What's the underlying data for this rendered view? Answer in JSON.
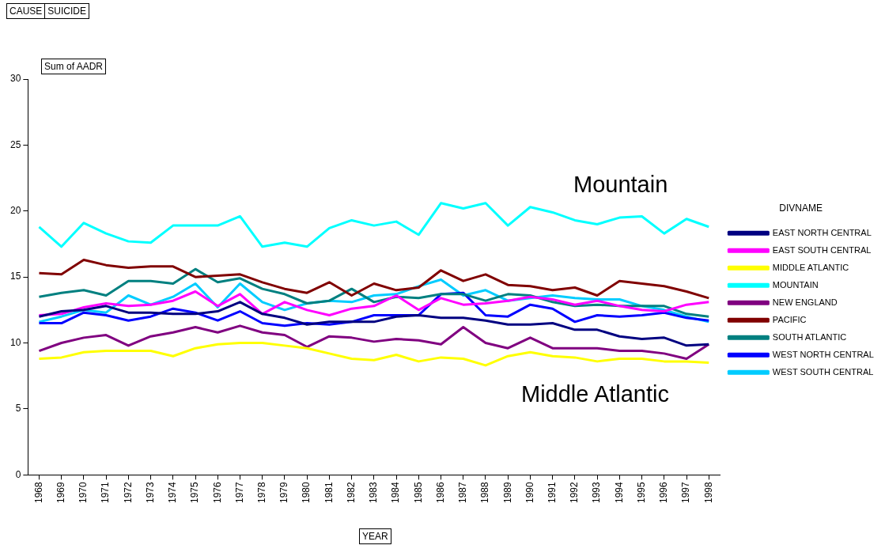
{
  "chart_data": {
    "type": "line",
    "xlabel": "YEAR",
    "ylabel": "Sum of AADR",
    "legend_title": "DIVNAME",
    "legend": "right",
    "grid": false,
    "marker": "none",
    "line_style": "solid",
    "annotations": [
      "CAUSE",
      "SUICIDE",
      "Mountain",
      "Middle Atlantic"
    ],
    "ylim": [
      0,
      30
    ],
    "yticks": [
      0,
      5,
      10,
      15,
      20,
      25,
      30
    ],
    "categories": [
      "1968",
      "1969",
      "1970",
      "1971",
      "1972",
      "1973",
      "1974",
      "1975",
      "1976",
      "1977",
      "1978",
      "1979",
      "1980",
      "1981",
      "1982",
      "1983",
      "1984",
      "1985",
      "1986",
      "1987",
      "1988",
      "1989",
      "1990",
      "1991",
      "1992",
      "1993",
      "1994",
      "1995",
      "1996",
      "1997",
      "1998"
    ],
    "series": [
      {
        "name": "EAST NORTH CENTRAL",
        "color": "#000080",
        "values": [
          12.0,
          12.4,
          12.5,
          12.8,
          12.3,
          12.3,
          12.2,
          12.2,
          12.4,
          13.1,
          12.2,
          11.9,
          11.4,
          11.6,
          11.6,
          11.6,
          12.0,
          12.1,
          11.9,
          11.9,
          11.7,
          11.4,
          11.4,
          11.5,
          11.0,
          11.0,
          10.5,
          10.3,
          10.4,
          9.8,
          9.9
        ]
      },
      {
        "name": "EAST SOUTH CENTRAL",
        "color": "#ff00ff",
        "values": [
          12.1,
          12.2,
          12.7,
          13.0,
          12.8,
          12.9,
          13.2,
          13.9,
          12.8,
          13.7,
          12.2,
          13.1,
          12.5,
          12.1,
          12.6,
          12.8,
          13.6,
          12.5,
          13.4,
          12.9,
          13.0,
          13.2,
          13.5,
          13.3,
          12.9,
          13.2,
          12.8,
          12.5,
          12.4,
          12.9,
          13.1
        ]
      },
      {
        "name": "MIDDLE ATLANTIC",
        "color": "#ffff00",
        "values": [
          8.8,
          8.9,
          9.3,
          9.4,
          9.4,
          9.4,
          9.0,
          9.6,
          9.9,
          10.0,
          10.0,
          9.8,
          9.6,
          9.2,
          8.8,
          8.7,
          9.1,
          8.6,
          8.9,
          8.8,
          8.3,
          9.0,
          9.3,
          9.0,
          8.9,
          8.6,
          8.8,
          8.8,
          8.6,
          8.6,
          8.5
        ]
      },
      {
        "name": "MOUNTAIN",
        "color": "#00ffff",
        "values": [
          18.8,
          17.3,
          19.1,
          18.3,
          17.7,
          17.6,
          18.9,
          18.9,
          18.9,
          19.6,
          17.3,
          17.6,
          17.3,
          18.7,
          19.3,
          18.9,
          19.2,
          18.2,
          20.6,
          20.2,
          20.6,
          18.9,
          20.3,
          19.9,
          19.3,
          19.0,
          19.5,
          19.6,
          18.3,
          19.4,
          18.8
        ]
      },
      {
        "name": "NEW ENGLAND",
        "color": "#800080",
        "values": [
          9.4,
          10.0,
          10.4,
          10.6,
          9.8,
          10.5,
          10.8,
          11.2,
          10.8,
          11.3,
          10.8,
          10.6,
          9.7,
          10.5,
          10.4,
          10.1,
          10.3,
          10.2,
          9.9,
          11.2,
          10.0,
          9.6,
          10.4,
          9.6,
          9.6,
          9.6,
          9.4,
          9.4,
          9.2,
          8.8,
          9.9
        ]
      },
      {
        "name": "PACIFIC",
        "color": "#800000",
        "values": [
          15.3,
          15.2,
          16.3,
          15.9,
          15.7,
          15.8,
          15.8,
          15.0,
          15.1,
          15.2,
          14.6,
          14.1,
          13.8,
          14.6,
          13.6,
          14.5,
          14.0,
          14.2,
          15.5,
          14.7,
          15.2,
          14.4,
          14.3,
          14.0,
          14.2,
          13.6,
          14.7,
          14.5,
          14.3,
          13.9,
          13.4
        ]
      },
      {
        "name": "SOUTH ATLANTIC",
        "color": "#008080",
        "values": [
          13.5,
          13.8,
          14.0,
          13.6,
          14.7,
          14.7,
          14.5,
          15.6,
          14.6,
          14.9,
          14.1,
          13.7,
          13.0,
          13.2,
          14.1,
          13.1,
          13.5,
          13.4,
          13.7,
          13.7,
          13.2,
          13.7,
          13.6,
          13.1,
          12.8,
          12.9,
          12.8,
          12.8,
          12.8,
          12.2,
          12.0
        ]
      },
      {
        "name": "WEST NORTH CENTRAL",
        "color": "#0000ff",
        "values": [
          11.5,
          11.5,
          12.3,
          12.1,
          11.7,
          12.0,
          12.6,
          12.3,
          11.7,
          12.4,
          11.5,
          11.3,
          11.5,
          11.4,
          11.6,
          12.1,
          12.1,
          12.1,
          13.7,
          13.8,
          12.1,
          12.0,
          12.9,
          12.6,
          11.6,
          12.1,
          12.0,
          12.1,
          12.3,
          11.9,
          11.7
        ]
      },
      {
        "name": "WEST SOUTH CENTRAL",
        "color": "#00ccff",
        "values": [
          11.6,
          12.0,
          12.5,
          12.3,
          13.6,
          12.9,
          13.5,
          14.5,
          12.7,
          14.5,
          13.1,
          12.5,
          13.0,
          13.2,
          13.1,
          13.6,
          13.7,
          14.3,
          14.8,
          13.6,
          14.0,
          13.2,
          13.4,
          13.6,
          13.4,
          13.3,
          13.3,
          12.8,
          12.5,
          12.0,
          11.6
        ]
      }
    ]
  }
}
